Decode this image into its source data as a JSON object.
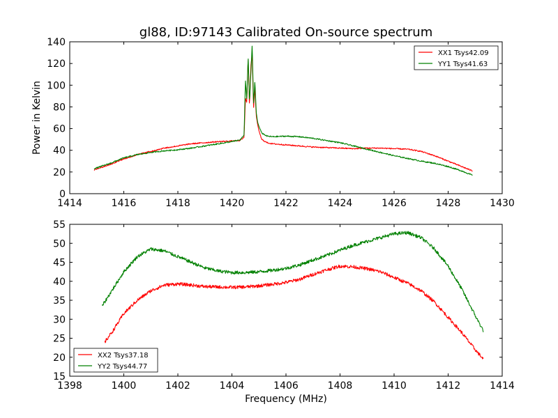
{
  "figure": {
    "title": "gl88, ID:97143 Calibrated On-source spectrum"
  },
  "chart_data": [
    {
      "type": "line",
      "title": "gl88, ID:97143 Calibrated On-source spectrum",
      "xlabel": "",
      "ylabel": "Power in Kelvin",
      "xlim": [
        1414,
        1430
      ],
      "ylim": [
        0,
        140
      ],
      "xticks": [
        "1414",
        "1416",
        "1418",
        "1420",
        "1422",
        "1424",
        "1426",
        "1428",
        "1430"
      ],
      "yticks": [
        "0",
        "20",
        "40",
        "60",
        "80",
        "100",
        "120",
        "140"
      ],
      "legend_position": "top-right",
      "grid": false,
      "series": [
        {
          "name": "XX1 Tsys42.09",
          "color": "#ff0000",
          "x": [
            1414.9,
            1415.5,
            1416.0,
            1416.5,
            1417.0,
            1417.5,
            1418.0,
            1418.5,
            1419.0,
            1419.5,
            1420.0,
            1420.3,
            1420.45,
            1420.5,
            1420.55,
            1420.6,
            1420.65,
            1420.7,
            1420.75,
            1420.8,
            1420.85,
            1420.9,
            1420.95,
            1421.0,
            1421.1,
            1421.3,
            1421.5,
            1422.0,
            1422.5,
            1423.0,
            1423.5,
            1424.0,
            1424.5,
            1425.0,
            1425.5,
            1426.0,
            1426.5,
            1427.0,
            1427.5,
            1428.0,
            1428.5,
            1428.9
          ],
          "y": [
            22,
            27,
            32,
            36,
            39,
            42,
            44,
            46,
            47,
            48,
            48.5,
            49,
            52,
            88,
            84,
            126,
            80,
            118,
            128,
            78,
            98,
            72,
            64,
            58,
            50,
            47,
            46,
            45,
            44,
            43,
            42.5,
            42,
            41.5,
            42,
            42,
            41.5,
            41,
            39,
            35,
            30,
            25,
            21
          ]
        },
        {
          "name": "YY1 Tsys41.63",
          "color": "#008000",
          "x": [
            1414.9,
            1415.5,
            1416.0,
            1416.5,
            1417.0,
            1417.5,
            1418.0,
            1418.5,
            1419.0,
            1419.5,
            1420.0,
            1420.3,
            1420.45,
            1420.5,
            1420.55,
            1420.6,
            1420.65,
            1420.7,
            1420.75,
            1420.8,
            1420.85,
            1420.9,
            1420.95,
            1421.0,
            1421.1,
            1421.3,
            1421.5,
            1422.0,
            1422.5,
            1423.0,
            1423.5,
            1424.0,
            1424.5,
            1425.0,
            1425.5,
            1426.0,
            1426.5,
            1427.0,
            1427.5,
            1428.0,
            1428.5,
            1428.9
          ],
          "y": [
            23,
            28,
            33,
            36,
            38,
            39.5,
            40.5,
            42,
            44,
            46,
            48,
            49.5,
            54,
            105,
            86,
            127,
            84,
            110,
            138,
            82,
            104,
            75,
            66,
            62,
            56,
            53,
            52.5,
            53,
            52.5,
            51,
            49,
            47,
            44,
            41,
            38,
            35,
            32.5,
            30,
            28,
            25,
            21,
            17
          ]
        }
      ]
    },
    {
      "type": "line",
      "title": "",
      "xlabel": "Frequency (MHz)",
      "ylabel": "",
      "xlim": [
        1398,
        1414
      ],
      "ylim": [
        15,
        55
      ],
      "xticks": [
        "1398",
        "1400",
        "1402",
        "1404",
        "1406",
        "1408",
        "1410",
        "1412",
        "1414"
      ],
      "yticks": [
        "15",
        "20",
        "25",
        "30",
        "35",
        "40",
        "45",
        "50",
        "55"
      ],
      "legend_position": "bottom-left",
      "grid": false,
      "series": [
        {
          "name": "XX2 Tsys37.18",
          "color": "#ff0000",
          "x": [
            1399.3,
            1399.6,
            1400.0,
            1400.5,
            1401.0,
            1401.5,
            1402.0,
            1402.5,
            1403.0,
            1403.5,
            1404.0,
            1404.5,
            1405.0,
            1405.5,
            1406.0,
            1406.5,
            1407.0,
            1407.5,
            1408.0,
            1408.5,
            1409.0,
            1409.5,
            1410.0,
            1410.5,
            1411.0,
            1411.5,
            1412.0,
            1412.5,
            1413.0,
            1413.3
          ],
          "y": [
            24,
            27,
            31.5,
            35,
            37.5,
            39,
            39.3,
            39,
            38.6,
            38.5,
            38.4,
            38.5,
            38.8,
            39.2,
            39.7,
            40.5,
            41.8,
            43,
            44,
            43.8,
            43.3,
            42.5,
            41,
            39.5,
            37.5,
            34.5,
            30.5,
            26.5,
            22,
            19.5
          ]
        },
        {
          "name": "YY2 Tsys44.77",
          "color": "#008000",
          "x": [
            1399.2,
            1399.6,
            1400.0,
            1400.5,
            1401.0,
            1401.5,
            1402.0,
            1402.5,
            1403.0,
            1403.5,
            1404.0,
            1404.5,
            1405.0,
            1405.5,
            1406.0,
            1406.5,
            1407.0,
            1407.5,
            1408.0,
            1408.5,
            1409.0,
            1409.5,
            1410.0,
            1410.5,
            1411.0,
            1411.5,
            1412.0,
            1412.5,
            1413.0,
            1413.3
          ],
          "y": [
            33.5,
            38,
            42.5,
            46.5,
            48.5,
            48,
            46.5,
            45,
            43.5,
            42.7,
            42.3,
            42.3,
            42.5,
            42.9,
            43.4,
            44.3,
            45.6,
            46.8,
            48.2,
            49.5,
            50.5,
            51.5,
            52.5,
            52.8,
            51.5,
            48.5,
            44,
            38,
            31,
            27
          ]
        }
      ]
    }
  ]
}
